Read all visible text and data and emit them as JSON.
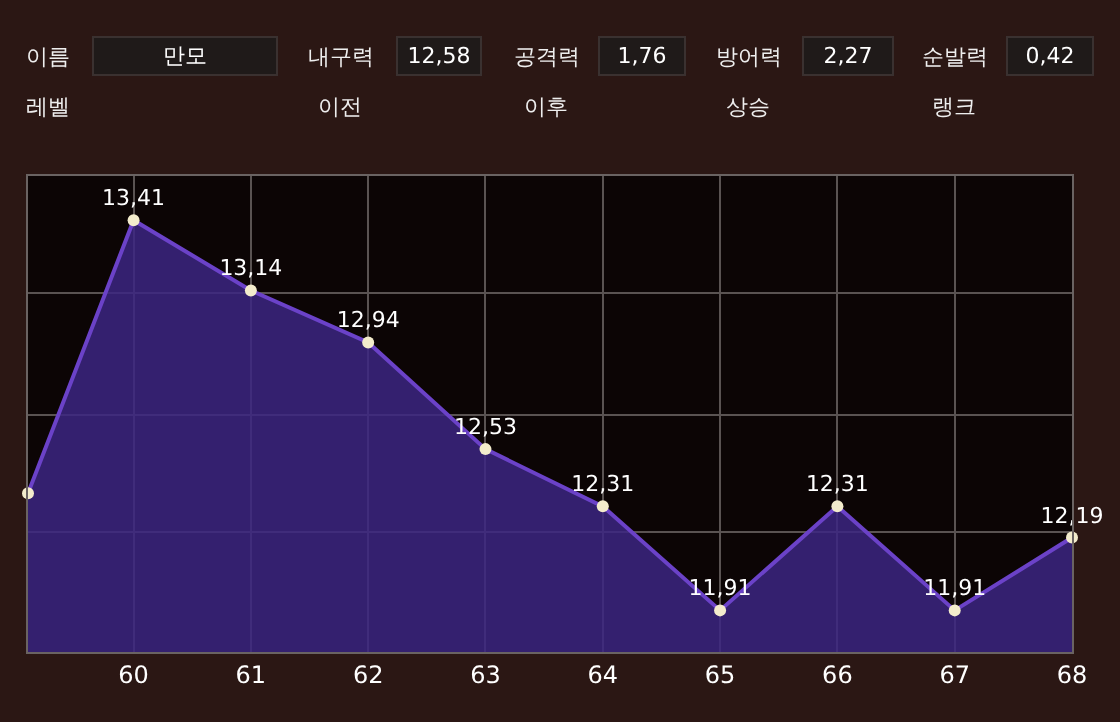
{
  "chart_data": [
    {
      "type": "other",
      "annotations": [
        "이름",
        "만모",
        "내구력",
        "12,58",
        "공격력",
        "1,76",
        "방어력",
        "2,27",
        "순발력",
        "0,42",
        "레벨",
        "이전",
        "이후",
        "상승",
        "랭크"
      ]
    },
    {
      "type": "area",
      "x": [
        59.1,
        60,
        61,
        62,
        63,
        64,
        65,
        66,
        67,
        68
      ],
      "series": [
        {
          "color": "#6b42c8",
          "values": [
            12.36,
            13.41,
            13.14,
            12.94,
            12.53,
            12.31,
            11.91,
            12.31,
            11.91,
            12.19
          ],
          "value_labels": [
            null,
            "13,41",
            "13,14",
            "12,94",
            "12,53",
            "12,31",
            "11,91",
            "12,31",
            "11,91",
            "12,19"
          ]
        }
      ],
      "xlim": [
        59.1,
        68
      ],
      "xticks": [
        60,
        61,
        62,
        63,
        64,
        65,
        66,
        67,
        68
      ],
      "ylim": [
        11.75,
        13.58
      ],
      "yticks": [
        {
          "value": 12.21,
          "label": null
        },
        {
          "value": 12.66,
          "label": null
        },
        {
          "value": 13.13,
          "label": null
        }
      ],
      "grid": true,
      "marker": "circle"
    }
  ]
}
